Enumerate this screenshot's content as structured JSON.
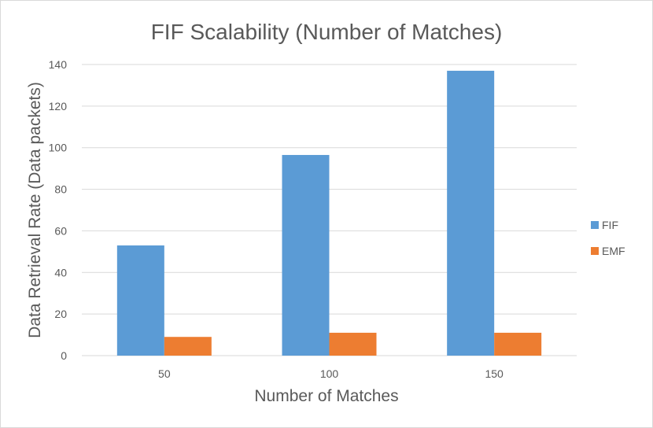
{
  "chart_data": {
    "type": "bar",
    "title": "FIF Scalability (Number of Matches)",
    "xlabel": "Number of Matches",
    "ylabel": "Data Retrieval Rate (Data packets)",
    "categories": [
      "50",
      "100",
      "150"
    ],
    "series": [
      {
        "name": "FIF",
        "values": [
          53,
          96.5,
          137
        ],
        "color": "#5b9bd5"
      },
      {
        "name": "EMF",
        "values": [
          9,
          11,
          11
        ],
        "color": "#ed7d31"
      }
    ],
    "ylim": [
      0,
      140
    ],
    "yticks": [
      "0",
      "20",
      "40",
      "60",
      "80",
      "100",
      "120",
      "140"
    ],
    "grid": true,
    "legend": "right"
  }
}
